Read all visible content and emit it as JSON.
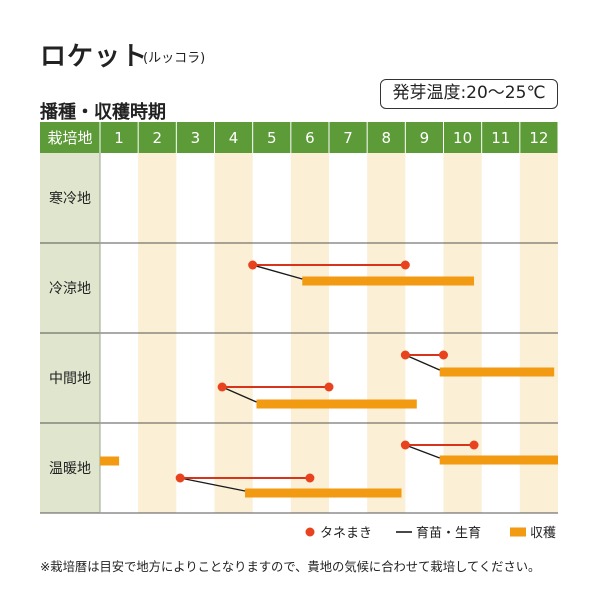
{
  "header": {
    "title": "ロケット",
    "subtitle": "(ルッコラ)",
    "temperature": "発芽温度:20～25℃",
    "section_title": "播種・収穫時期"
  },
  "footnote": "※栽培暦は目安で地方によりことなりますので、貴地の気候に合わせて栽培してください。",
  "colors": {
    "header_green": "#5d9b39",
    "region_bg": "#dfe6cd",
    "shade": "#fbefd5",
    "sowing_dot": "#e8421e",
    "sowing_line": "#d8341c",
    "growth_line": "#1a1a1a",
    "harvest_bar": "#f29a11"
  },
  "chart_data": {
    "type": "gantt",
    "corner_label": "栽培地",
    "months": [
      "1",
      "2",
      "3",
      "4",
      "5",
      "6",
      "7",
      "8",
      "9",
      "10",
      "11",
      "12"
    ],
    "shaded_months": [
      2,
      4,
      6,
      8,
      10,
      12
    ],
    "regions": [
      {
        "name": "寒冷地",
        "periods": []
      },
      {
        "name": "冷涼地",
        "periods": [
          {
            "sow": [
              5.0,
              9.0
            ],
            "harvest": [
              6.3,
              10.8
            ]
          }
        ]
      },
      {
        "name": "中間地",
        "periods": [
          {
            "sow": [
              4.2,
              7.0
            ],
            "harvest": [
              5.1,
              9.3
            ]
          },
          {
            "sow": [
              9.0,
              10.0
            ],
            "harvest": [
              9.9,
              12.9
            ]
          }
        ]
      },
      {
        "name": "温暖地",
        "periods": [
          {
            "sow": null,
            "harvest": [
              1.0,
              1.5
            ]
          },
          {
            "sow": [
              3.1,
              6.5
            ],
            "harvest": [
              4.8,
              8.9
            ]
          },
          {
            "sow": [
              9.0,
              10.8
            ],
            "harvest": [
              9.9,
              13.0
            ]
          }
        ]
      }
    ],
    "legend": [
      {
        "key": "sowing",
        "label": "タネまき"
      },
      {
        "key": "growth",
        "label": "育苗・生育"
      },
      {
        "key": "harvest",
        "label": "収穫"
      }
    ]
  }
}
